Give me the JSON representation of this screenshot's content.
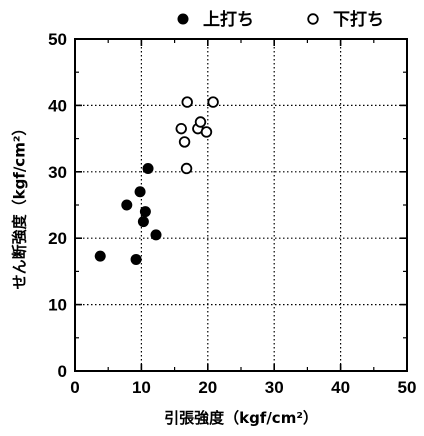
{
  "chart_data": {
    "type": "scatter",
    "xlabel": "引張強度（kgf/cm²）",
    "ylabel": "せん断強度（kgf/cm²）",
    "xlim": [
      0,
      50
    ],
    "ylim": [
      0,
      50
    ],
    "x_ticks": [
      "0",
      "10",
      "20",
      "30",
      "40",
      "50"
    ],
    "y_ticks": [
      "0",
      "10",
      "20",
      "30",
      "40",
      "50"
    ],
    "grid": true,
    "grid_style": "dotted",
    "legend_position": "top",
    "series": [
      {
        "name": "上打ち",
        "marker": "filled-circle",
        "color": "#000000",
        "points": [
          {
            "x": 3.8,
            "y": 17.3
          },
          {
            "x": 7.8,
            "y": 25.0
          },
          {
            "x": 9.2,
            "y": 16.8
          },
          {
            "x": 9.8,
            "y": 27.0
          },
          {
            "x": 10.3,
            "y": 22.5
          },
          {
            "x": 10.6,
            "y": 24.0
          },
          {
            "x": 11.0,
            "y": 30.5
          },
          {
            "x": 12.2,
            "y": 20.5
          }
        ]
      },
      {
        "name": "下打ち",
        "marker": "open-circle",
        "color": "#000000",
        "points": [
          {
            "x": 16.0,
            "y": 36.5
          },
          {
            "x": 16.5,
            "y": 34.5
          },
          {
            "x": 16.8,
            "y": 30.5
          },
          {
            "x": 16.9,
            "y": 40.5
          },
          {
            "x": 18.5,
            "y": 36.5
          },
          {
            "x": 18.9,
            "y": 37.5
          },
          {
            "x": 19.8,
            "y": 36.0
          },
          {
            "x": 20.8,
            "y": 40.5
          }
        ]
      }
    ]
  }
}
